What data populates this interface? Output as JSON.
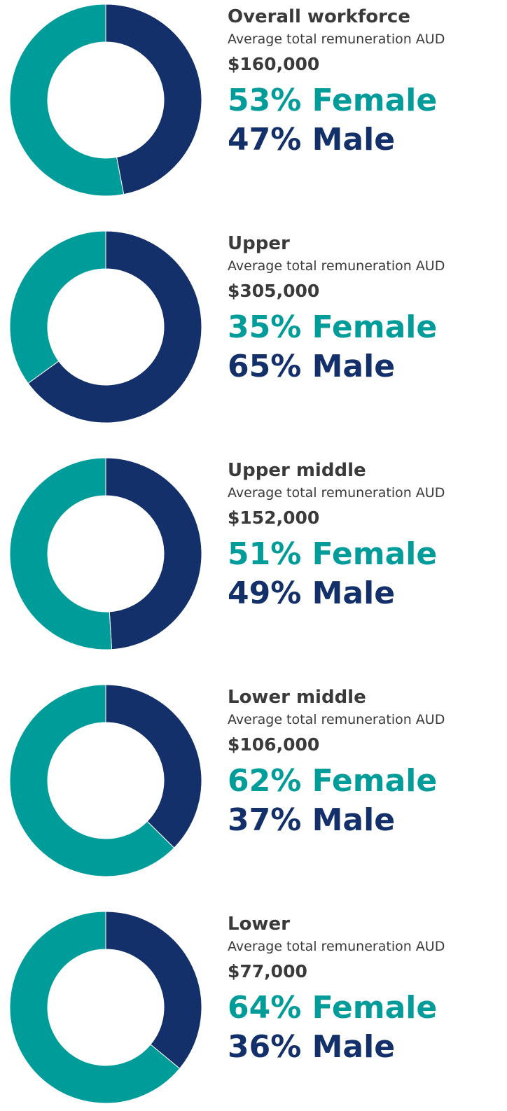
{
  "chart_data": [
    {
      "type": "donut",
      "title": "Overall workforce",
      "subtitle": "Average total remuneration AUD",
      "amount": "$160,000",
      "series": [
        {
          "color": "#009c9a",
          "value": 53,
          "value_label": "53% Female"
        },
        {
          "color": "#13306a",
          "value": 47,
          "value_label": "47% Male"
        }
      ]
    },
    {
      "type": "donut",
      "title": "Upper",
      "subtitle": "Average total remuneration AUD",
      "amount": "$305,000",
      "series": [
        {
          "color": "#009c9a",
          "value": 35,
          "value_label": "35% Female"
        },
        {
          "color": "#13306a",
          "value": 65,
          "value_label": "65% Male"
        }
      ]
    },
    {
      "type": "donut",
      "title": "Upper middle",
      "subtitle": "Average total remuneration AUD",
      "amount": "$152,000",
      "series": [
        {
          "color": "#009c9a",
          "value": 51,
          "value_label": "51% Female"
        },
        {
          "color": "#13306a",
          "value": 49,
          "value_label": "49% Male"
        }
      ]
    },
    {
      "type": "donut",
      "title": "Lower middle",
      "subtitle": "Average total remuneration AUD",
      "amount": "$106,000",
      "series": [
        {
          "color": "#009c9a",
          "value": 62,
          "value_label": "62% Female"
        },
        {
          "color": "#13306a",
          "value": 37,
          "value_label": "37% Male"
        }
      ]
    },
    {
      "type": "donut",
      "title": "Lower",
      "subtitle": "Average total remuneration AUD",
      "amount": "$77,000",
      "series": [
        {
          "color": "#009c9a",
          "value": 64,
          "value_label": "64% Female"
        },
        {
          "color": "#13306a",
          "value": 36,
          "value_label": "36% Male"
        }
      ]
    }
  ]
}
